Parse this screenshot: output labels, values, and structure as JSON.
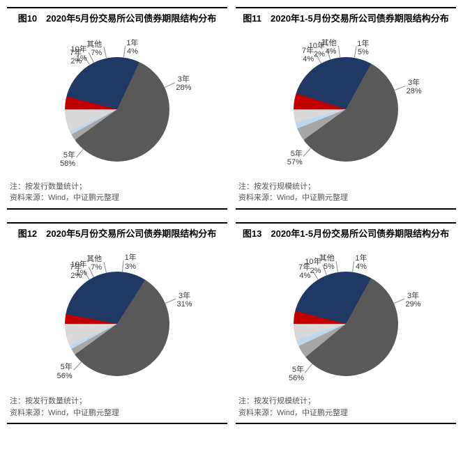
{
  "background_color": "#ffffff",
  "title_fontsize": 13,
  "label_fontsize": 11,
  "note_fontsize": 11,
  "border_color": "#000000",
  "charts": [
    {
      "id": "c10",
      "title": "图10　2020年5月份交易所公司债券期限结构分布",
      "note1": "注：按发行数量统计；",
      "note2": "资料来源：Wind，中证鹏元整理",
      "type": "pie",
      "slices": [
        {
          "name": "1年",
          "value": 4,
          "color": "#c00000"
        },
        {
          "name": "3年",
          "value": 28,
          "color": "#203864"
        },
        {
          "name": "5年",
          "value": 58,
          "color": "#595959"
        },
        {
          "name": "7年",
          "value": 2,
          "color": "#a6a6a6"
        },
        {
          "name": "10年",
          "value": 1,
          "color": "#bdd7ee"
        },
        {
          "name": "其他",
          "value": 7,
          "color": "#d9d9d9"
        }
      ],
      "pie_diameter": 150,
      "start_angle_deg": -90
    },
    {
      "id": "c11",
      "title": "图11　2020年1-5月份交易所公司债券期限结构分布",
      "note1": "注：按发行规模统计；",
      "note2": "资料来源：Wind，中证鹏元整理",
      "type": "pie",
      "slices": [
        {
          "name": "1年",
          "value": 5,
          "color": "#c00000"
        },
        {
          "name": "3年",
          "value": 28,
          "color": "#203864"
        },
        {
          "name": "5年",
          "value": 57,
          "color": "#595959"
        },
        {
          "name": "7年",
          "value": 4,
          "color": "#a6a6a6"
        },
        {
          "name": "10年",
          "value": 2,
          "color": "#bdd7ee"
        },
        {
          "name": "其他",
          "value": 4,
          "color": "#d9d9d9"
        }
      ],
      "pie_diameter": 150,
      "start_angle_deg": -90
    },
    {
      "id": "c12",
      "title": "图12　2020年5月份交易所公司债券期限结构分布",
      "note1": "注：按发行数量统计；",
      "note2": "资料来源：Wind，中证鹏元整理",
      "type": "pie",
      "slices": [
        {
          "name": "1年",
          "value": 3,
          "color": "#c00000"
        },
        {
          "name": "3年",
          "value": 31,
          "color": "#203864"
        },
        {
          "name": "5年",
          "value": 56,
          "color": "#595959"
        },
        {
          "name": "7年",
          "value": 2,
          "color": "#a6a6a6"
        },
        {
          "name": "10年",
          "value": 1,
          "color": "#bdd7ee"
        },
        {
          "name": "其他",
          "value": 7,
          "color": "#d9d9d9"
        }
      ],
      "pie_diameter": 150,
      "start_angle_deg": -90
    },
    {
      "id": "c13",
      "title": "图13　2020年1-5月份交易所公司债券期限结构分布",
      "note1": "注：按发行规模统计；",
      "note2": "资料来源：Wind，中证鹏元整理",
      "type": "pie",
      "slices": [
        {
          "name": "1年",
          "value": 4,
          "color": "#c00000"
        },
        {
          "name": "3年",
          "value": 29,
          "color": "#203864"
        },
        {
          "name": "5年",
          "value": 56,
          "color": "#595959"
        },
        {
          "name": "7年",
          "value": 4,
          "color": "#a6a6a6"
        },
        {
          "name": "10年",
          "value": 2,
          "color": "#bdd7ee"
        },
        {
          "name": "其他",
          "value": 5,
          "color": "#d9d9d9"
        }
      ],
      "pie_diameter": 150,
      "start_angle_deg": -90
    }
  ]
}
